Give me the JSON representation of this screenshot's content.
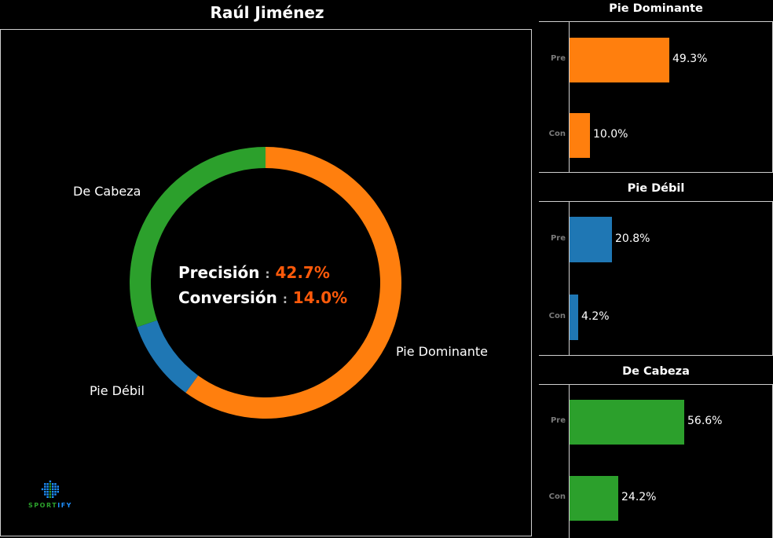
{
  "title": "Raúl Jiménez",
  "colors": {
    "pie_dominante": "#ff7f0e",
    "pie_debil": "#1f77b4",
    "de_cabeza": "#2ca02c",
    "highlight": "#ff5a0a",
    "background": "#000000",
    "frame": "#cfcfcf"
  },
  "donut": {
    "labels": {
      "pie_dominante": "Pie Dominante",
      "pie_debil": "Pie Débil",
      "de_cabeza": "De Cabeza"
    },
    "center": {
      "precision_label": "Precisión",
      "precision_sep": ":",
      "precision_value": "42.7%",
      "conversion_label": "Conversión",
      "conversion_sep": ":",
      "conversion_value": "14.0%"
    }
  },
  "logo": {
    "text": "SPORTIFY"
  },
  "panels": [
    {
      "title": "Pie Dominante",
      "bars": [
        {
          "category": "Pre",
          "label": "49.3%"
        },
        {
          "category": "Con",
          "label": "10.0%"
        }
      ]
    },
    {
      "title": "Pie Débil",
      "bars": [
        {
          "category": "Pre",
          "label": "20.8%"
        },
        {
          "category": "Con",
          "label": "4.2%"
        }
      ]
    },
    {
      "title": "De Cabeza",
      "bars": [
        {
          "category": "Pre",
          "label": "56.6%"
        },
        {
          "category": "Con",
          "label": "24.2%"
        }
      ]
    }
  ],
  "chart_data": [
    {
      "type": "pie",
      "subtype": "donut",
      "title": "Raúl Jiménez",
      "categories": [
        "Pie Dominante",
        "Pie Débil",
        "De Cabeza"
      ],
      "values": [
        60.0,
        9.7,
        30.3
      ],
      "colors": [
        "#ff7f0e",
        "#1f77b4",
        "#2ca02c"
      ],
      "start_angle": "top, clockwise",
      "annotations": [
        "Precisión : 42.7%",
        "Conversión : 14.0%"
      ]
    },
    {
      "type": "bar",
      "orientation": "horizontal",
      "title": "Pie Dominante",
      "categories": [
        "Pre",
        "Con"
      ],
      "values": [
        49.3,
        10.0
      ],
      "data_labels": [
        "49.3%",
        "10.0%"
      ],
      "color": "#ff7f0e",
      "xlim": [
        0,
        100
      ],
      "grid": false
    },
    {
      "type": "bar",
      "orientation": "horizontal",
      "title": "Pie Débil",
      "categories": [
        "Pre",
        "Con"
      ],
      "values": [
        20.8,
        4.2
      ],
      "data_labels": [
        "20.8%",
        "4.2%"
      ],
      "color": "#1f77b4",
      "xlim": [
        0,
        100
      ],
      "grid": false
    },
    {
      "type": "bar",
      "orientation": "horizontal",
      "title": "De Cabeza",
      "categories": [
        "Pre",
        "Con"
      ],
      "values": [
        56.6,
        24.2
      ],
      "data_labels": [
        "56.6%",
        "24.2%"
      ],
      "color": "#2ca02c",
      "xlim": [
        0,
        100
      ],
      "grid": false
    }
  ]
}
